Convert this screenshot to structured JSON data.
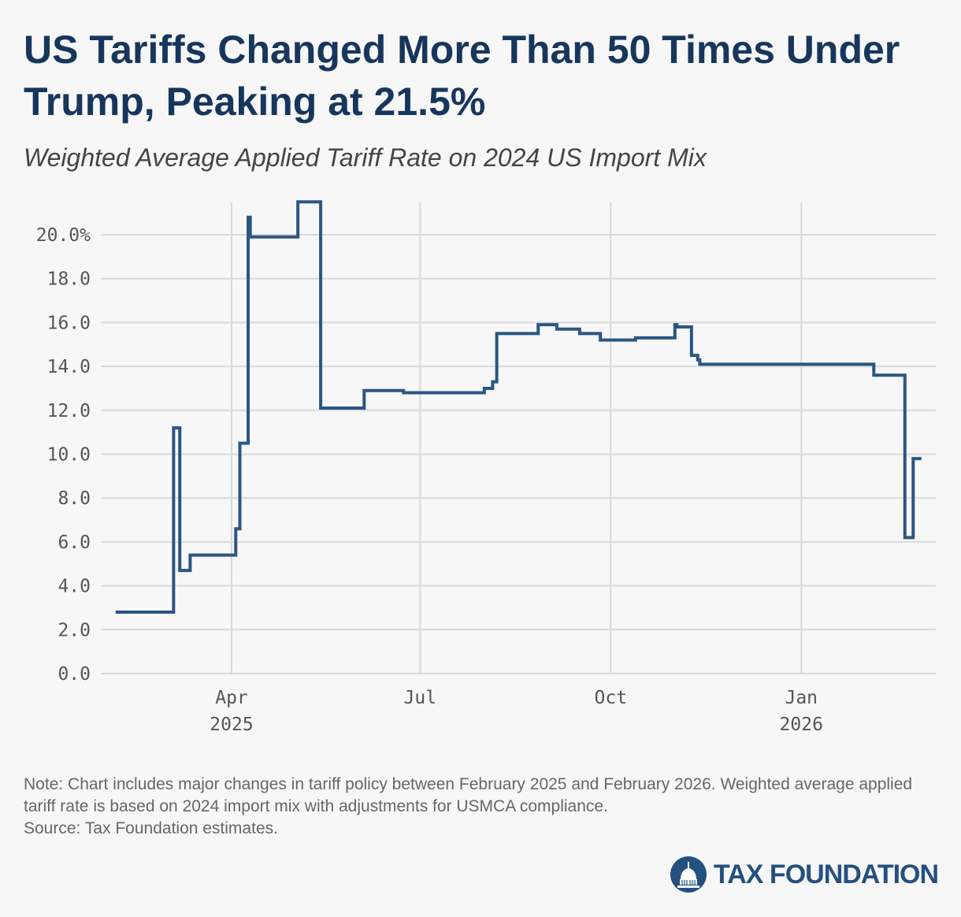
{
  "header": {
    "title": "US Tariffs Changed More Than 50 Times Under Trump, Peaking at 21.5%",
    "subtitle": "Weighted Average Applied Tariff Rate on 2024 US Import Mix"
  },
  "chart_data": {
    "type": "line",
    "step": "post",
    "title": "US Tariffs Changed More Than 50 Times Under Trump, Peaking at 21.5%",
    "subtitle": "Weighted Average Applied Tariff Rate on 2024 US Import Mix",
    "xlabel": "",
    "ylabel": "",
    "ylim": [
      0,
      21.5
    ],
    "xlim": [
      "2025-01-19",
      "2026-03-10"
    ],
    "grid": true,
    "yticks": [
      {
        "v": 0,
        "label": "0.0"
      },
      {
        "v": 2,
        "label": "2.0"
      },
      {
        "v": 4,
        "label": "4.0"
      },
      {
        "v": 6,
        "label": "6.0"
      },
      {
        "v": 8,
        "label": "8.0"
      },
      {
        "v": 10,
        "label": "10.0"
      },
      {
        "v": 12,
        "label": "12.0"
      },
      {
        "v": 14,
        "label": "14.0"
      },
      {
        "v": 16,
        "label": "16.0"
      },
      {
        "v": 18,
        "label": "18.0"
      },
      {
        "v": 20,
        "label": "20.0%"
      }
    ],
    "xticks": [
      {
        "date": "2025-04-01",
        "label": "Apr",
        "year": "2025"
      },
      {
        "date": "2025-07-01",
        "label": "Jul",
        "year": ""
      },
      {
        "date": "2025-10-01",
        "label": "Oct",
        "year": ""
      },
      {
        "date": "2026-01-01",
        "label": "Jan",
        "year": "2026"
      }
    ],
    "color": "#2b5583",
    "series": [
      {
        "name": "Weighted average applied tariff rate",
        "points": [
          [
            "2025-02-04",
            2.8
          ],
          [
            "2025-03-04",
            11.2
          ],
          [
            "2025-03-07",
            4.7
          ],
          [
            "2025-03-12",
            5.4
          ],
          [
            "2025-04-03",
            6.6
          ],
          [
            "2025-04-05",
            10.5
          ],
          [
            "2025-04-09",
            20.8
          ],
          [
            "2025-04-10",
            19.9
          ],
          [
            "2025-05-03",
            21.5
          ],
          [
            "2025-05-14",
            12.1
          ],
          [
            "2025-06-04",
            12.9
          ],
          [
            "2025-06-23",
            12.8
          ],
          [
            "2025-08-01",
            13.0
          ],
          [
            "2025-08-05",
            13.3
          ],
          [
            "2025-08-07",
            15.5
          ],
          [
            "2025-08-27",
            15.9
          ],
          [
            "2025-09-05",
            15.7
          ],
          [
            "2025-09-16",
            15.5
          ],
          [
            "2025-09-26",
            15.2
          ],
          [
            "2025-10-13",
            15.3
          ],
          [
            "2025-11-01",
            15.9
          ],
          [
            "2025-11-02",
            15.8
          ],
          [
            "2025-11-09",
            14.5
          ],
          [
            "2025-11-12",
            14.3
          ],
          [
            "2025-11-13",
            14.1
          ],
          [
            "2026-02-05",
            13.6
          ],
          [
            "2026-02-20",
            6.2
          ],
          [
            "2026-02-24",
            9.8
          ],
          [
            "2026-02-28",
            9.8
          ]
        ]
      }
    ]
  },
  "footer": {
    "note": "Note: Chart includes major changes in tariff policy between February 2025 and February 2026. Weighted average applied tariff rate is based on 2024 import mix with adjustments for USMCA compliance.",
    "source": "Source: Tax Foundation estimates.",
    "logo_text": "TAX FOUNDATION"
  }
}
